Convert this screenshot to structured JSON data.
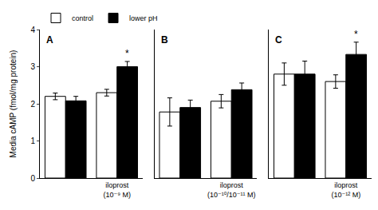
{
  "chart_data": [
    {
      "type": "bar",
      "title": "A",
      "ylabel": "Media cAMP (fmol/mg protein)",
      "categories": [
        null,
        "iloprost\n(10⁻⁹ M)"
      ],
      "series": [
        {
          "name": "control",
          "color": "white",
          "values": [
            2.2,
            2.3
          ],
          "errors": [
            0.09,
            0.09
          ]
        },
        {
          "name": "lower pH",
          "color": "black",
          "values": [
            2.08,
            3.0
          ],
          "errors": [
            0.12,
            0.14
          ]
        }
      ],
      "annotations": [
        {
          "text": "*",
          "category": 1,
          "series": "lower pH"
        }
      ],
      "ylim": [
        0,
        4
      ],
      "yticks": [
        0,
        1,
        2,
        3,
        4
      ],
      "grid": false,
      "legend": "upper left"
    },
    {
      "type": "bar",
      "title": "B",
      "categories": [
        null,
        "iloprost\n(10⁻¹⁰/10⁻¹¹ M)"
      ],
      "series": [
        {
          "name": "control",
          "color": "white",
          "values": [
            1.78,
            2.07
          ],
          "errors": [
            0.38,
            0.18
          ]
        },
        {
          "name": "lower pH",
          "color": "black",
          "values": [
            1.9,
            2.38
          ],
          "errors": [
            0.2,
            0.18
          ]
        }
      ],
      "ylim": [
        0,
        4
      ],
      "yticks": [
        0,
        1,
        2,
        3,
        4
      ],
      "grid": false,
      "tick_labels": "x"
    },
    {
      "type": "bar",
      "title": "C",
      "categories": [
        null,
        "iloprost\n(10⁻¹² M)"
      ],
      "series": [
        {
          "name": "control",
          "color": "white",
          "values": [
            2.8,
            2.6
          ],
          "errors": [
            0.3,
            0.18
          ]
        },
        {
          "name": "lower pH",
          "color": "black",
          "values": [
            2.8,
            3.33
          ],
          "errors": [
            0.35,
            0.33
          ]
        }
      ],
      "annotations": [
        {
          "text": "*",
          "category": 1,
          "series": "lower pH"
        }
      ],
      "ylim": [
        0,
        4
      ],
      "yticks": [
        0,
        1,
        2,
        3,
        4
      ],
      "grid": false,
      "tick_labels": "x"
    }
  ]
}
